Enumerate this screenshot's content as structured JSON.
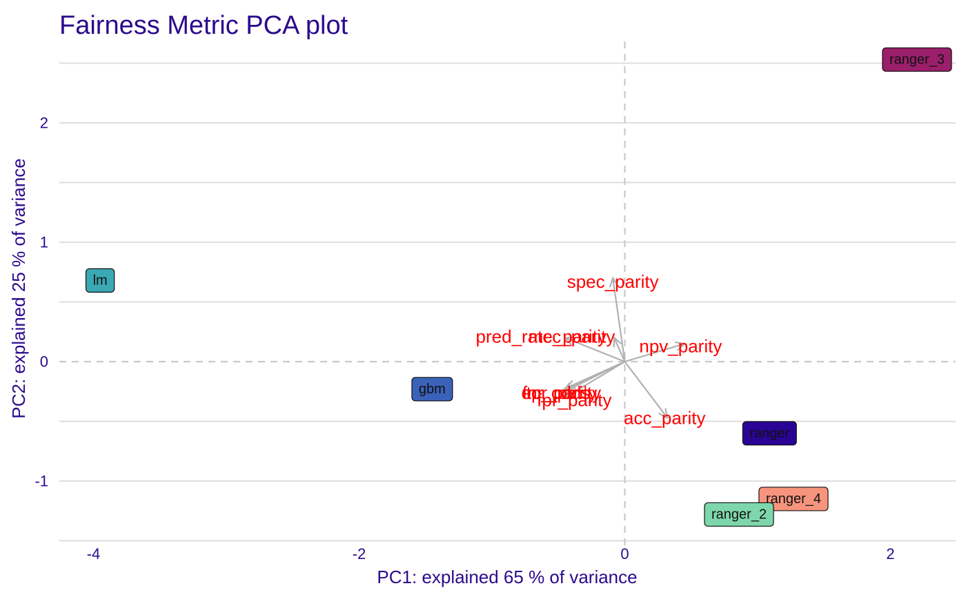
{
  "chart_data": {
    "type": "scatter",
    "title": "Fairness Metric PCA plot",
    "xlabel": "PC1: explained 65 % of variance",
    "ylabel": "PC2: explained 25 % of variance",
    "xlim": [
      -4.25,
      2.5
    ],
    "ylim": [
      -1.5,
      2.7
    ],
    "xticks": [
      -4,
      -2,
      0,
      2
    ],
    "yticks": [
      -1,
      0,
      1,
      2
    ],
    "grid": "horizontal",
    "legend": "none",
    "models": [
      {
        "name": "ranger_3",
        "x": 2.2,
        "y": 2.53,
        "color": "#9b1f6b"
      },
      {
        "name": "lm",
        "x": -3.95,
        "y": 0.68,
        "color": "#3aa9b4"
      },
      {
        "name": "gbm",
        "x": -1.45,
        "y": -0.23,
        "color": "#3a62b8"
      },
      {
        "name": "ranger",
        "x": 1.09,
        "y": -0.6,
        "color": "#2a0496"
      },
      {
        "name": "ranger_4",
        "x": 1.27,
        "y": -1.15,
        "color": "#f7947e"
      },
      {
        "name": "ranger_2",
        "x": 0.86,
        "y": -1.28,
        "color": "#7ed7ac"
      }
    ],
    "loadings": [
      {
        "name": "spec_parity",
        "x": -0.09,
        "y": 0.7,
        "label_x": -0.09,
        "label_y": 0.67
      },
      {
        "name": "pred_rate_parity",
        "x": -0.45,
        "y": 0.2,
        "label_x": -0.63,
        "label_y": 0.21
      },
      {
        "name": "mcc_parity",
        "x": -0.08,
        "y": 0.2,
        "label_x": -0.4,
        "label_y": 0.21
      },
      {
        "name": "npv_parity",
        "x": 0.45,
        "y": 0.15,
        "label_x": 0.42,
        "label_y": 0.13
      },
      {
        "name": "acc_parity",
        "x": 0.32,
        "y": -0.47,
        "label_x": 0.3,
        "label_y": -0.47
      },
      {
        "name": "eq_odds",
        "x": -0.47,
        "y": -0.26,
        "label_x": -0.52,
        "label_y": -0.26
      },
      {
        "name": "fnr_parity",
        "x": -0.46,
        "y": -0.24,
        "label_x": -0.49,
        "label_y": -0.26
      },
      {
        "name": "tpr_parity",
        "x": -0.44,
        "y": -0.22,
        "label_x": -0.46,
        "label_y": -0.26
      },
      {
        "name": "fpr_parity",
        "x": -0.45,
        "y": -0.3,
        "label_x": -0.38,
        "label_y": -0.32
      }
    ]
  }
}
